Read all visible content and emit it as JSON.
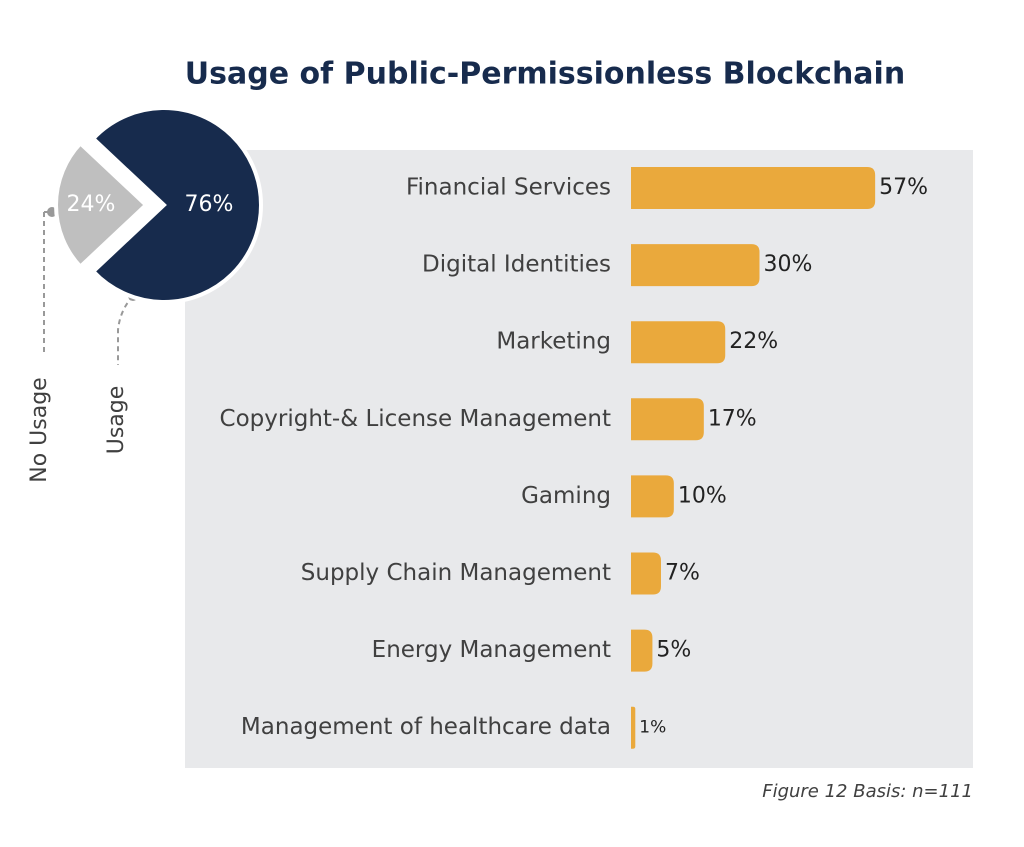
{
  "chart_data": [
    {
      "type": "pie",
      "title": "Usage of Public-Permissionless Blockchain",
      "categories": [
        "Usage",
        "No Usage"
      ],
      "values": [
        76,
        24
      ],
      "value_labels": [
        "76%",
        "24%"
      ],
      "colors": [
        "#172b4d",
        "#bfbfbf"
      ]
    },
    {
      "type": "bar",
      "orientation": "horizontal",
      "categories": [
        "Financial Services",
        "Digital Identities",
        "Marketing",
        "Copyright-& License Management",
        "Gaming",
        "Supply Chain Management",
        "Energy Management",
        "Management of healthcare data"
      ],
      "values": [
        57,
        30,
        22,
        17,
        10,
        7,
        5,
        1
      ],
      "value_labels": [
        "57%",
        "30%",
        "22%",
        "17%",
        "10%",
        "7%",
        "5%",
        "1%"
      ],
      "color": "#eaa93c",
      "xlim": [
        0,
        60
      ],
      "annotation": "Figure 12 Basis: n=111"
    }
  ]
}
